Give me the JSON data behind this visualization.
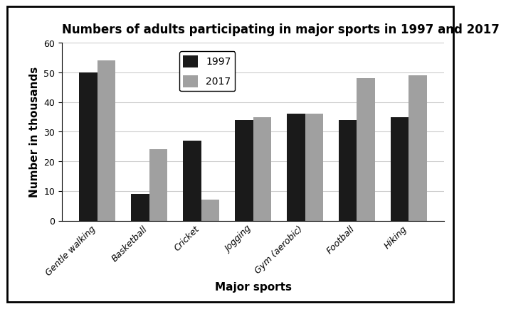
{
  "title": "Numbers of adults participating in major sports in 1997 and 2017",
  "categories": [
    "Gentle walking",
    "Basketball",
    "Cricket",
    "Jogging",
    "Gym (aerobic)",
    "Football",
    "Hiking"
  ],
  "values_1997": [
    50,
    9,
    27,
    34,
    36,
    34,
    35
  ],
  "values_2017": [
    54,
    24,
    7,
    35,
    36,
    48,
    49
  ],
  "color_1997": "#1a1a1a",
  "color_2017": "#a0a0a0",
  "xlabel": "Major sports",
  "ylabel": "Number in thousands",
  "ylim": [
    0,
    60
  ],
  "yticks": [
    0,
    10,
    20,
    30,
    40,
    50,
    60
  ],
  "legend_labels": [
    "1997",
    "2017"
  ],
  "bar_width": 0.35,
  "background_color": "#ffffff",
  "title_fontsize": 12,
  "axis_label_fontsize": 11,
  "tick_label_fontsize": 9,
  "legend_fontsize": 10
}
